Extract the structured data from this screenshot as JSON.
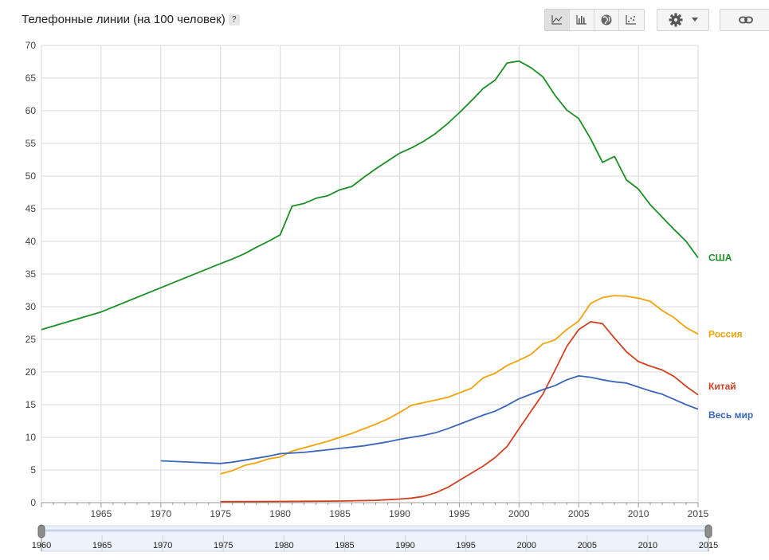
{
  "header": {
    "title": "Телефонные линии (на 100 человек)",
    "help_label": "?"
  },
  "toolbar": {
    "chart_types": [
      {
        "icon": "line-chart-icon",
        "active": true
      },
      {
        "icon": "bar-chart-icon",
        "active": false
      },
      {
        "icon": "globe-map-icon",
        "active": false
      },
      {
        "icon": "scatter-chart-icon",
        "active": false
      }
    ],
    "settings_icon": "gear-icon",
    "dropdown_icon": "caret-down-icon",
    "link_icon": "link-icon"
  },
  "colors": {
    "usa": "#1a8f24",
    "russia": "#f0a30a",
    "china": "#d2401f",
    "world": "#3a67b9",
    "grid": "#d9d9d9"
  },
  "chart_data": {
    "type": "line",
    "title": "Телефонные линии (на 100 человек)",
    "xlim": [
      1960,
      2015
    ],
    "ylim": [
      0,
      70
    ],
    "y_ticks": [
      0,
      5,
      10,
      15,
      20,
      25,
      30,
      35,
      40,
      45,
      50,
      55,
      60,
      65,
      70
    ],
    "x_ticks": [
      1965,
      1970,
      1975,
      1980,
      1985,
      1990,
      1995,
      2000,
      2005,
      2010,
      2015
    ],
    "range_ticks": [
      1960,
      1965,
      1970,
      1975,
      1980,
      1985,
      1990,
      1995,
      2000,
      2005,
      2010,
      2015
    ],
    "grid": true,
    "legend": "line-end labels (right)",
    "series": [
      {
        "name": "США",
        "key": "usa",
        "points": [
          [
            1960,
            26.5
          ],
          [
            1965,
            29.2
          ],
          [
            1970,
            32.9
          ],
          [
            1975,
            36.6
          ],
          [
            1976,
            37.3
          ],
          [
            1977,
            38.1
          ],
          [
            1978,
            39.1
          ],
          [
            1979,
            40.0
          ],
          [
            1980,
            41.0
          ],
          [
            1981,
            45.4
          ],
          [
            1982,
            45.8
          ],
          [
            1983,
            46.6
          ],
          [
            1984,
            47.0
          ],
          [
            1985,
            47.9
          ],
          [
            1986,
            48.4
          ],
          [
            1987,
            49.8
          ],
          [
            1988,
            51.1
          ],
          [
            1989,
            52.3
          ],
          [
            1990,
            53.5
          ],
          [
            1991,
            54.3
          ],
          [
            1992,
            55.3
          ],
          [
            1993,
            56.5
          ],
          [
            1994,
            58.0
          ],
          [
            1995,
            59.7
          ],
          [
            1996,
            61.5
          ],
          [
            1997,
            63.4
          ],
          [
            1998,
            64.7
          ],
          [
            1999,
            67.3
          ],
          [
            2000,
            67.6
          ],
          [
            2001,
            66.6
          ],
          [
            2002,
            65.2
          ],
          [
            2003,
            62.4
          ],
          [
            2004,
            60.1
          ],
          [
            2005,
            58.8
          ],
          [
            2006,
            55.7
          ],
          [
            2007,
            52.1
          ],
          [
            2008,
            53.0
          ],
          [
            2009,
            49.4
          ],
          [
            2010,
            48.0
          ],
          [
            2011,
            45.6
          ],
          [
            2012,
            43.7
          ],
          [
            2013,
            41.8
          ],
          [
            2014,
            40.0
          ],
          [
            2015,
            37.5
          ]
        ]
      },
      {
        "name": "Россия",
        "key": "russia",
        "points": [
          [
            1975,
            4.4
          ],
          [
            1976,
            4.9
          ],
          [
            1977,
            5.7
          ],
          [
            1978,
            6.1
          ],
          [
            1979,
            6.7
          ],
          [
            1980,
            7.0
          ],
          [
            1981,
            7.9
          ],
          [
            1982,
            8.4
          ],
          [
            1983,
            8.9
          ],
          [
            1984,
            9.4
          ],
          [
            1985,
            10.0
          ],
          [
            1986,
            10.6
          ],
          [
            1987,
            11.3
          ],
          [
            1988,
            12.0
          ],
          [
            1989,
            12.8
          ],
          [
            1990,
            13.8
          ],
          [
            1991,
            14.9
          ],
          [
            1992,
            15.3
          ],
          [
            1993,
            15.7
          ],
          [
            1994,
            16.1
          ],
          [
            1995,
            16.8
          ],
          [
            1996,
            17.5
          ],
          [
            1997,
            19.1
          ],
          [
            1998,
            19.8
          ],
          [
            1999,
            21.0
          ],
          [
            2000,
            21.8
          ],
          [
            2001,
            22.7
          ],
          [
            2002,
            24.3
          ],
          [
            2003,
            24.9
          ],
          [
            2004,
            26.5
          ],
          [
            2005,
            27.8
          ],
          [
            2006,
            30.5
          ],
          [
            2007,
            31.4
          ],
          [
            2008,
            31.7
          ],
          [
            2009,
            31.6
          ],
          [
            2010,
            31.3
          ],
          [
            2011,
            30.8
          ],
          [
            2012,
            29.4
          ],
          [
            2013,
            28.3
          ],
          [
            2014,
            26.8
          ],
          [
            2015,
            25.8
          ]
        ]
      },
      {
        "name": "Китай",
        "key": "china",
        "points": [
          [
            1975,
            0.15
          ],
          [
            1980,
            0.18
          ],
          [
            1985,
            0.25
          ],
          [
            1988,
            0.35
          ],
          [
            1989,
            0.45
          ],
          [
            1990,
            0.55
          ],
          [
            1991,
            0.7
          ],
          [
            1992,
            0.95
          ],
          [
            1993,
            1.5
          ],
          [
            1994,
            2.3
          ],
          [
            1995,
            3.4
          ],
          [
            1996,
            4.5
          ],
          [
            1997,
            5.6
          ],
          [
            1998,
            6.9
          ],
          [
            1999,
            8.6
          ],
          [
            2000,
            11.3
          ],
          [
            2001,
            14.0
          ],
          [
            2002,
            16.6
          ],
          [
            2003,
            20.2
          ],
          [
            2004,
            23.9
          ],
          [
            2005,
            26.5
          ],
          [
            2006,
            27.7
          ],
          [
            2007,
            27.4
          ],
          [
            2008,
            25.2
          ],
          [
            2009,
            23.1
          ],
          [
            2010,
            21.6
          ],
          [
            2011,
            20.9
          ],
          [
            2012,
            20.3
          ],
          [
            2013,
            19.3
          ],
          [
            2014,
            17.8
          ],
          [
            2015,
            16.5
          ]
        ]
      },
      {
        "name": "Весь мир",
        "key": "world",
        "points": [
          [
            1970,
            6.4
          ],
          [
            1975,
            6.0
          ],
          [
            1976,
            6.2
          ],
          [
            1977,
            6.5
          ],
          [
            1978,
            6.8
          ],
          [
            1979,
            7.1
          ],
          [
            1980,
            7.5
          ],
          [
            1981,
            7.6
          ],
          [
            1982,
            7.7
          ],
          [
            1983,
            7.9
          ],
          [
            1984,
            8.1
          ],
          [
            1985,
            8.3
          ],
          [
            1986,
            8.5
          ],
          [
            1987,
            8.7
          ],
          [
            1988,
            9.0
          ],
          [
            1989,
            9.3
          ],
          [
            1990,
            9.7
          ],
          [
            1991,
            10.0
          ],
          [
            1992,
            10.3
          ],
          [
            1993,
            10.7
          ],
          [
            1994,
            11.3
          ],
          [
            1995,
            12.0
          ],
          [
            1996,
            12.7
          ],
          [
            1997,
            13.4
          ],
          [
            1998,
            14.0
          ],
          [
            1999,
            14.9
          ],
          [
            2000,
            15.9
          ],
          [
            2001,
            16.6
          ],
          [
            2002,
            17.3
          ],
          [
            2003,
            17.9
          ],
          [
            2004,
            18.8
          ],
          [
            2005,
            19.4
          ],
          [
            2006,
            19.2
          ],
          [
            2007,
            18.8
          ],
          [
            2008,
            18.5
          ],
          [
            2009,
            18.3
          ],
          [
            2010,
            17.7
          ],
          [
            2011,
            17.1
          ],
          [
            2012,
            16.6
          ],
          [
            2013,
            15.8
          ],
          [
            2014,
            15.0
          ],
          [
            2015,
            14.3
          ]
        ]
      }
    ]
  }
}
